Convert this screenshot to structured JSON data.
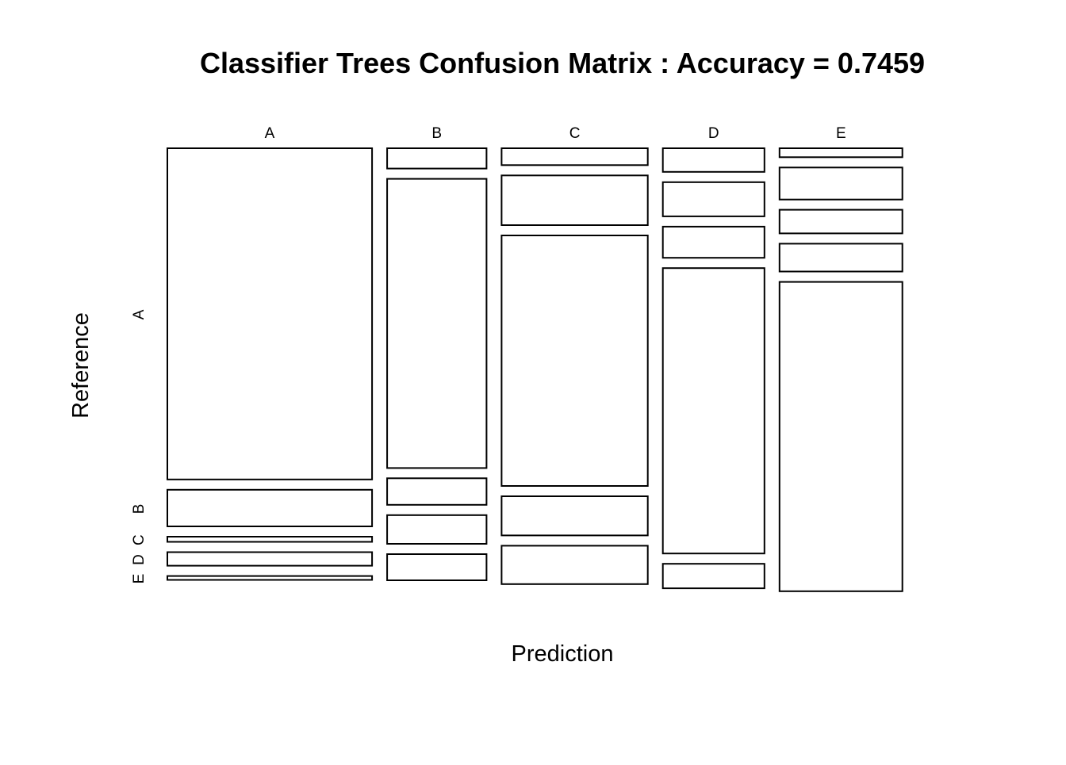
{
  "chart_data": {
    "type": "mosaic",
    "title": "Classifier Trees Confusion Matrix : Accuracy = 0.7459",
    "xlabel": "Prediction",
    "ylabel": "Reference",
    "x_categories": [
      "A",
      "B",
      "C",
      "D",
      "E"
    ],
    "y_categories": [
      "A",
      "B",
      "C",
      "D",
      "E"
    ],
    "column_fractions": [
      0.2802,
      0.1361,
      0.2001,
      0.1391,
      0.1682
    ],
    "cells": [
      {
        "prediction": "A",
        "reference": [
          0.792,
          0.091,
          0.016,
          0.036,
          0.013
        ]
      },
      {
        "prediction": "B",
        "reference": [
          0.052,
          0.692,
          0.067,
          0.072,
          0.066
        ]
      },
      {
        "prediction": "C",
        "reference": [
          0.044,
          0.122,
          0.6,
          0.097,
          0.095
        ]
      },
      {
        "prediction": "D",
        "reference": [
          0.06,
          0.085,
          0.078,
          0.683,
          0.062
        ]
      },
      {
        "prediction": "E",
        "reference": [
          0.025,
          0.08,
          0.06,
          0.07,
          0.74
        ]
      }
    ],
    "colors": {
      "fill": "#ffffff",
      "stroke": "#000000"
    },
    "grid": false,
    "legend": "none"
  }
}
